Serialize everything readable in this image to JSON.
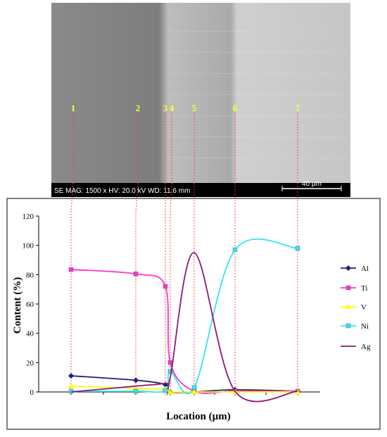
{
  "sem": {
    "info_bar": "SE  MAG: 1500 x  HV: 20.0 kV  WD: 11.6 mm",
    "scale_label": "40 µm",
    "point_labels": [
      "1",
      "2",
      "3",
      "4",
      "5",
      "6",
      "7"
    ]
  },
  "chart_data": {
    "type": "line",
    "ylabel": "Content (%)",
    "xlabel": "Location (µm)",
    "ylim": [
      0,
      120
    ],
    "yticks": [
      "0",
      "20",
      "40",
      "60",
      "80",
      "100",
      "120"
    ],
    "grid": false,
    "legend_position": "right",
    "points": [
      "1",
      "2",
      "3",
      "4",
      "5",
      "6",
      "7"
    ],
    "series": [
      {
        "name": "Al",
        "color": "#1f1f7a",
        "marker": "diamond",
        "values": [
          11,
          8,
          5,
          0,
          0,
          1.5,
          0.5
        ]
      },
      {
        "name": "Ti",
        "color": "#ff33cc",
        "marker": "square",
        "values": [
          83.5,
          80.5,
          72,
          20,
          0.5,
          0.5,
          0.5
        ]
      },
      {
        "name": "V",
        "color": "#ffff00",
        "marker": "triangle",
        "values": [
          4,
          2.5,
          2,
          0,
          0,
          0,
          0
        ]
      },
      {
        "name": "Ni",
        "color": "#33e5f0",
        "marker": "square",
        "values": [
          0.5,
          0.5,
          1,
          14,
          3,
          97,
          98
        ]
      },
      {
        "name": "Ag",
        "color": "#8b1a7a",
        "marker": "none",
        "values": [
          0,
          4,
          6,
          10,
          95,
          0.5,
          0.5
        ]
      }
    ]
  }
}
